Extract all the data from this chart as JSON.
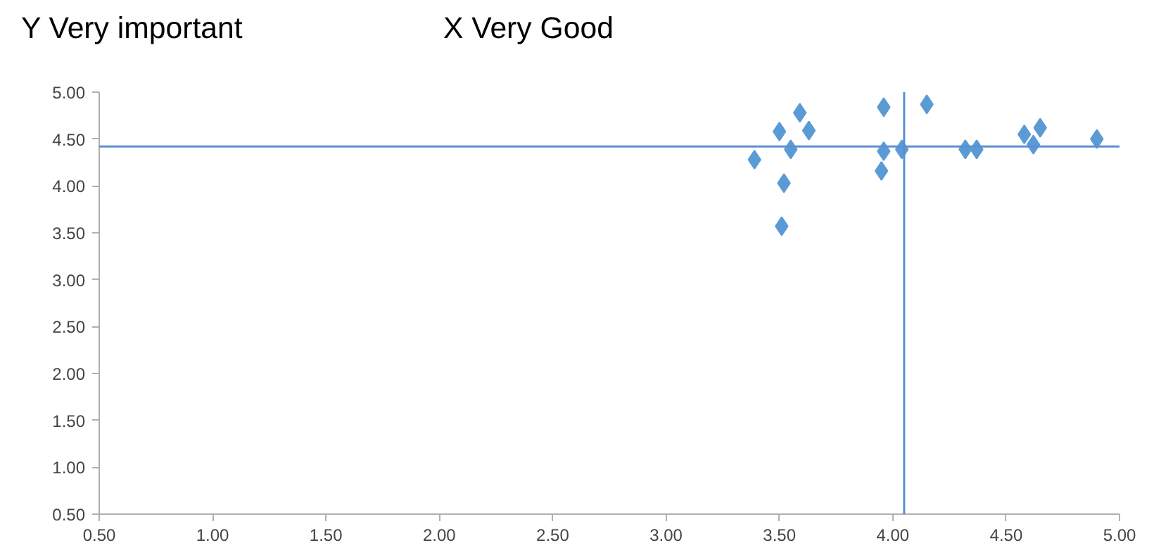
{
  "chart_data": {
    "type": "scatter",
    "annotations": [
      "Y Very important",
      "X Very Good"
    ],
    "x": [
      3.39,
      3.5,
      3.59,
      3.63,
      3.55,
      3.52,
      3.51,
      3.96,
      3.96,
      3.95,
      4.04,
      4.15,
      4.32,
      4.37,
      4.58,
      4.65,
      4.62,
      4.9
    ],
    "series": [
      {
        "color": "#5b9bd5",
        "values": [
          4.28,
          4.58,
          4.78,
          4.59,
          4.39,
          4.03,
          3.57,
          4.84,
          4.37,
          4.16,
          4.39,
          4.87,
          4.39,
          4.39,
          4.55,
          4.62,
          4.44,
          4.5
        ]
      }
    ],
    "marker": "diamond",
    "grid": false,
    "xlim": [
      0.5,
      5.0
    ],
    "ylim": [
      0.5,
      5.0
    ],
    "xticks": [
      {
        "value": 0.5,
        "label": "0.50"
      },
      {
        "value": 1.0,
        "label": "1.00"
      },
      {
        "value": 1.5,
        "label": "1.50"
      },
      {
        "value": 2.0,
        "label": "2.00"
      },
      {
        "value": 2.5,
        "label": "2.50"
      },
      {
        "value": 3.0,
        "label": "3.00"
      },
      {
        "value": 3.5,
        "label": "3.50"
      },
      {
        "value": 4.0,
        "label": "4.00"
      },
      {
        "value": 4.5,
        "label": "4.50"
      },
      {
        "value": 5.0,
        "label": "5.00"
      }
    ],
    "yticks": [
      {
        "value": 0.5,
        "label": "0.50"
      },
      {
        "value": 1.0,
        "label": "1.00"
      },
      {
        "value": 1.5,
        "label": "1.50"
      },
      {
        "value": 2.0,
        "label": "2.00"
      },
      {
        "value": 2.5,
        "label": "2.50"
      },
      {
        "value": 3.0,
        "label": "3.00"
      },
      {
        "value": 3.5,
        "label": "3.50"
      },
      {
        "value": 4.0,
        "label": "4.00"
      },
      {
        "value": 4.5,
        "label": "4.50"
      },
      {
        "value": 5.0,
        "label": "5.00"
      }
    ],
    "ref_lines": [
      {
        "axis": "x",
        "value": 4.05,
        "color": "#5b8fd0"
      },
      {
        "axis": "y",
        "value": 4.42,
        "color": "#5b8fd0"
      }
    ]
  }
}
